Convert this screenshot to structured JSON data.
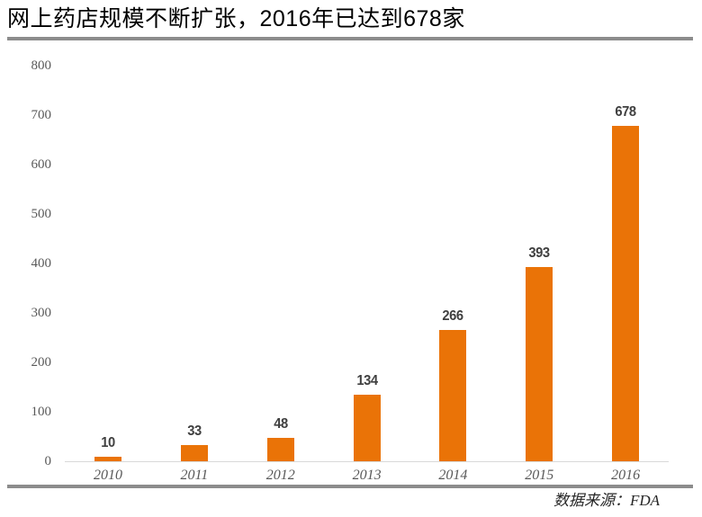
{
  "title": "网上药店规模不断扩张，2016年已达到678家",
  "source": "数据来源：FDA",
  "chart_data": {
    "type": "bar",
    "title": "网上药店规模不断扩张，2016年已达到678家",
    "categories": [
      "2010",
      "2011",
      "2012",
      "2013",
      "2014",
      "2015",
      "2016"
    ],
    "values": [
      10,
      33,
      48,
      134,
      266,
      393,
      678
    ],
    "data_labels": [
      10,
      33,
      48,
      134,
      266,
      393,
      678
    ],
    "xlabel": "",
    "ylabel": "",
    "ylim": [
      0,
      800
    ],
    "yticks": [
      0,
      100,
      200,
      300,
      400,
      500,
      600,
      700,
      800
    ],
    "grid": false,
    "legend": false,
    "annotation": "数据来源：FDA"
  },
  "colors": {
    "bar": "#EA7307",
    "axis_line": "#D9D9D9",
    "rule": "#8C8C8C",
    "tick": "#595959",
    "vlabel": "#3F3F3F",
    "title": "#000000",
    "source": "#262626"
  }
}
